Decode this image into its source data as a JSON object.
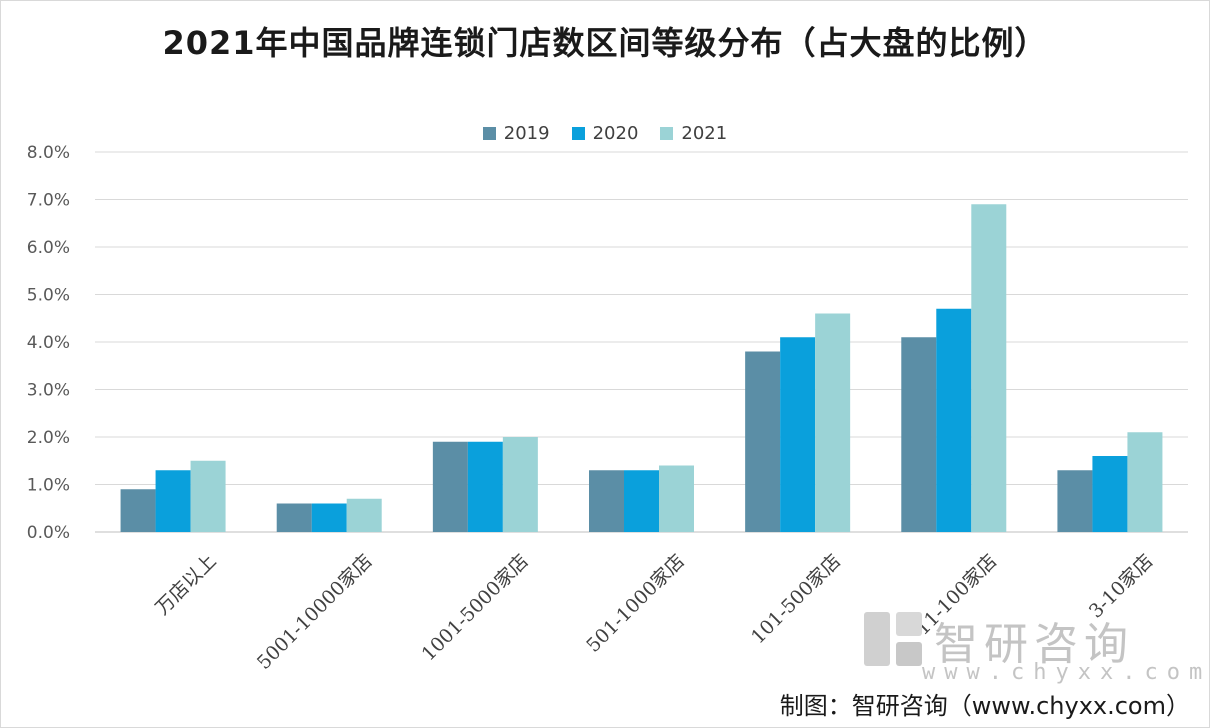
{
  "chart_data": {
    "type": "bar",
    "title": "2021年中国品牌连锁门店数区间等级分布（占大盘的比例）",
    "categories": [
      "万店以上",
      "5001-10000家店",
      "1001-5000家店",
      "501-1000家店",
      "101-500家店",
      "11-100家店",
      "3-10家店"
    ],
    "series": [
      {
        "name": "2019",
        "color": "#5b8ea6",
        "values": [
          0.9,
          0.6,
          1.9,
          1.3,
          3.8,
          4.1,
          1.3
        ]
      },
      {
        "name": "2020",
        "color": "#0aa0dc",
        "values": [
          1.3,
          0.6,
          1.9,
          1.3,
          4.1,
          4.7,
          1.6
        ]
      },
      {
        "name": "2021",
        "color": "#9bd3d6",
        "values": [
          1.5,
          0.7,
          2.0,
          1.4,
          4.6,
          6.9,
          2.1
        ]
      }
    ],
    "ylim": [
      0,
      8
    ],
    "yticks": [
      "0.0%",
      "1.0%",
      "2.0%",
      "3.0%",
      "4.0%",
      "5.0%",
      "6.0%",
      "7.0%",
      "8.0%"
    ],
    "grid": true,
    "legend_position": "top-center",
    "xlabel": "",
    "ylabel": ""
  },
  "watermark": {
    "name": "智研咨询",
    "url": "www.chyxx.com"
  },
  "credit": "制图：智研咨询（www.chyxx.com）"
}
